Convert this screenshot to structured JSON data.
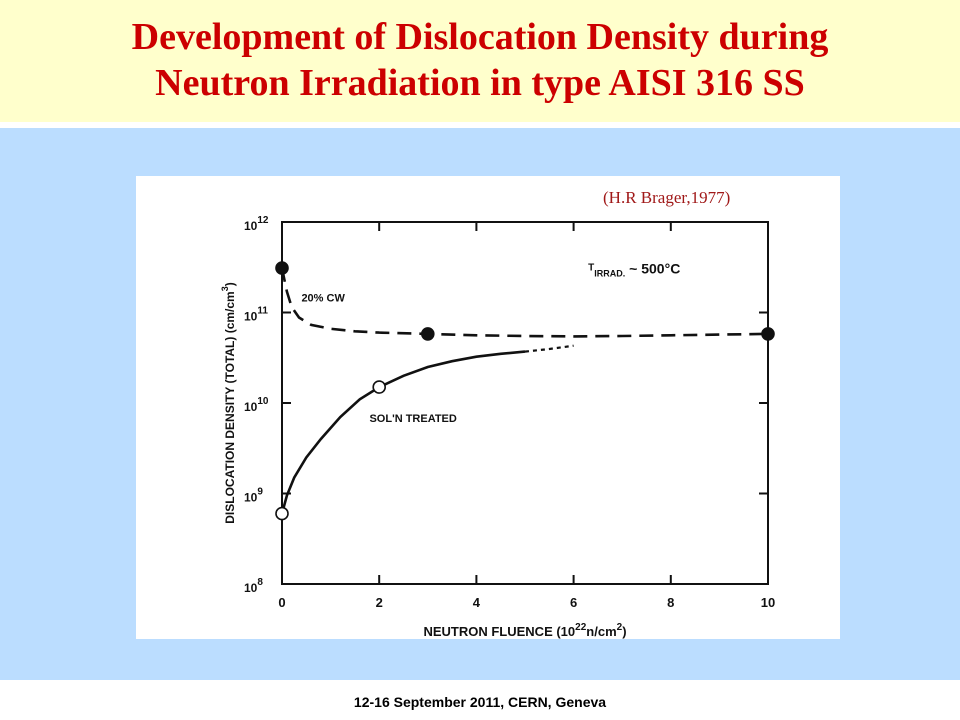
{
  "slide": {
    "title_line1": "Development of Dislocation Density during",
    "title_line2": "Neutron Irradiation in type AISI 316 SS",
    "citation": "(H.R Brager,1977)",
    "footer": "12-16  September 2011, CERN, Geneva",
    "colors": {
      "title": "#cc0000",
      "title_band": "#ffffcc",
      "background": "#bbddff",
      "citation": "#a01818"
    }
  },
  "chart_data": {
    "type": "line",
    "xlabel": "NEUTRON FLUENCE (10",
    "xlabel_exp": "22",
    "xlabel_unit": "n/cm",
    "xlabel_unit_exp": "2",
    "xlabel_close": ")",
    "ylabel": "DISLOCATION DENSITY (TOTAL) (cm/cm",
    "ylabel_exp": "3",
    "ylabel_close": ")",
    "xlim": [
      0,
      10
    ],
    "ylim_log10": [
      8,
      12
    ],
    "y_scale": "log",
    "x_ticks": [
      "0",
      "2",
      "4",
      "6",
      "8",
      "10"
    ],
    "y_ticks": [
      {
        "base": "10",
        "exp": "8"
      },
      {
        "base": "10",
        "exp": "9"
      },
      {
        "base": "10",
        "exp": "10"
      },
      {
        "base": "10",
        "exp": "11"
      },
      {
        "base": "10",
        "exp": "12"
      }
    ],
    "condition_label": "T",
    "condition_sub": "IRRAD.",
    "condition_value": "~ 500°C",
    "series": [
      {
        "name": "20% CW",
        "style": "dashed",
        "marker": "filled",
        "points": [
          [
            0,
            310000000000.0
          ],
          [
            3,
            58000000000.0
          ],
          [
            10,
            58000000000.0
          ]
        ],
        "curve": [
          [
            0,
            310000000000.0
          ],
          [
            0.05,
            230000000000.0
          ],
          [
            0.1,
            170000000000.0
          ],
          [
            0.2,
            115000000000.0
          ],
          [
            0.35,
            88000000000.0
          ],
          [
            0.6,
            73000000000.0
          ],
          [
            1,
            66000000000.0
          ],
          [
            1.5,
            62000000000.0
          ],
          [
            2,
            60000000000.0
          ],
          [
            3,
            58000000000.0
          ],
          [
            4,
            56000000000.0
          ],
          [
            5,
            55000000000.0
          ],
          [
            6,
            54500000000.0
          ],
          [
            7,
            55000000000.0
          ],
          [
            8,
            56000000000.0
          ],
          [
            9,
            57000000000.0
          ],
          [
            10,
            58000000000.0
          ]
        ]
      },
      {
        "name": "SOL'N TREATED",
        "style": "solid",
        "marker": "open",
        "points": [
          [
            0,
            600000000.0
          ],
          [
            2,
            15000000000.0
          ]
        ],
        "curve": [
          [
            0,
            600000000.0
          ],
          [
            0.1,
            950000000.0
          ],
          [
            0.25,
            1500000000.0
          ],
          [
            0.5,
            2500000000.0
          ],
          [
            0.8,
            4000000000.0
          ],
          [
            1.2,
            7000000000.0
          ],
          [
            1.6,
            11000000000.0
          ],
          [
            2,
            15000000000.0
          ],
          [
            2.5,
            20000000000.0
          ],
          [
            3,
            25000000000.0
          ],
          [
            3.5,
            29000000000.0
          ],
          [
            4,
            32500000000.0
          ],
          [
            4.5,
            35000000000.0
          ],
          [
            5,
            37000000000.0
          ]
        ],
        "extension": [
          [
            5,
            37000000000.0
          ],
          [
            5.5,
            39500000000.0
          ],
          [
            6,
            43000000000.0
          ]
        ]
      }
    ]
  }
}
